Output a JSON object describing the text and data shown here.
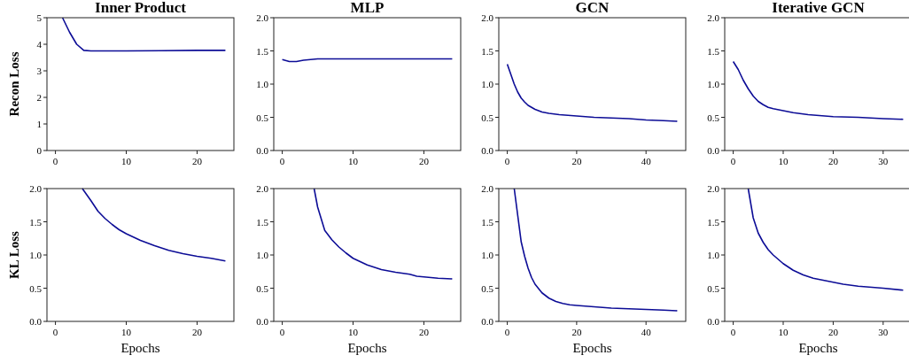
{
  "chart_data": [
    {
      "type": "line",
      "title": "Inner Product",
      "ylabel": "Recon Loss",
      "xlim": [
        -1.2,
        25.2
      ],
      "xticks": [
        0,
        10,
        20
      ],
      "ylim": [
        0,
        5
      ],
      "yticks": [
        0,
        1,
        2,
        3,
        4,
        5
      ],
      "grid": false,
      "series": [
        {
          "color": "#0c0c96",
          "x": [
            1,
            2,
            3,
            4,
            5,
            10,
            15,
            20,
            24
          ],
          "values": [
            5.0,
            4.45,
            4.0,
            3.77,
            3.75,
            3.75,
            3.76,
            3.77,
            3.77
          ]
        }
      ]
    },
    {
      "type": "line",
      "title": "MLP",
      "xlim": [
        -1.2,
        25.2
      ],
      "xticks": [
        0,
        10,
        20
      ],
      "ylim": [
        0,
        2
      ],
      "yticks": [
        {
          "value": 0,
          "label": "0.0"
        },
        0.5,
        {
          "value": 1,
          "label": "1.0"
        },
        1.5,
        {
          "value": 2,
          "label": "2.0"
        }
      ],
      "grid": false,
      "series": [
        {
          "color": "#0c0c96",
          "x": [
            0,
            1,
            2,
            3,
            4,
            5,
            10,
            24
          ],
          "values": [
            1.37,
            1.34,
            1.34,
            1.36,
            1.37,
            1.38,
            1.38,
            1.38
          ]
        }
      ]
    },
    {
      "type": "line",
      "title": "GCN",
      "xlim": [
        -2.45,
        51.45
      ],
      "xticks": [
        0,
        20,
        40
      ],
      "ylim": [
        0,
        2
      ],
      "yticks": [
        {
          "value": 0,
          "label": "0.0"
        },
        0.5,
        {
          "value": 1,
          "label": "1.0"
        },
        1.5,
        {
          "value": 2,
          "label": "2.0"
        }
      ],
      "grid": false,
      "series": [
        {
          "color": "#0c0c96",
          "x": [
            0,
            1,
            2,
            3,
            4,
            5,
            6,
            8,
            10,
            12,
            15,
            20,
            25,
            30,
            35,
            40,
            45,
            49
          ],
          "values": [
            1.3,
            1.15,
            1.0,
            0.88,
            0.79,
            0.73,
            0.68,
            0.62,
            0.58,
            0.56,
            0.54,
            0.52,
            0.5,
            0.49,
            0.48,
            0.46,
            0.45,
            0.44
          ]
        }
      ]
    },
    {
      "type": "line",
      "title": "Iterative GCN",
      "xlim": [
        -1.7,
        35.7
      ],
      "xticks": [
        0,
        10,
        20,
        30
      ],
      "ylim": [
        0,
        2
      ],
      "yticks": [
        {
          "value": 0,
          "label": "0.0"
        },
        0.5,
        {
          "value": 1,
          "label": "1.0"
        },
        1.5,
        {
          "value": 2,
          "label": "2.0"
        }
      ],
      "grid": false,
      "series": [
        {
          "color": "#0c0c96",
          "x": [
            0,
            1,
            2,
            3,
            4,
            5,
            6,
            7,
            8,
            10,
            12,
            15,
            20,
            25,
            30,
            34
          ],
          "values": [
            1.34,
            1.22,
            1.06,
            0.93,
            0.82,
            0.74,
            0.69,
            0.65,
            0.63,
            0.6,
            0.57,
            0.54,
            0.51,
            0.5,
            0.48,
            0.47
          ]
        }
      ]
    },
    {
      "type": "line",
      "xlabel": "Epochs",
      "ylabel": "KL Loss",
      "xlim": [
        -1.2,
        25.2
      ],
      "xticks": [
        0,
        10,
        20
      ],
      "ylim": [
        0,
        2
      ],
      "yticks": [
        {
          "value": 0,
          "label": "0.0"
        },
        0.5,
        {
          "value": 1,
          "label": "1.0"
        },
        1.5,
        {
          "value": 2,
          "label": "2.0"
        }
      ],
      "grid": false,
      "series": [
        {
          "color": "#0c0c96",
          "x": [
            3.8,
            5,
            6,
            7,
            8,
            9,
            10,
            12,
            14,
            16,
            18,
            20,
            22,
            24
          ],
          "values": [
            2.0,
            1.82,
            1.66,
            1.55,
            1.46,
            1.38,
            1.32,
            1.22,
            1.14,
            1.07,
            1.02,
            0.98,
            0.95,
            0.91
          ]
        }
      ]
    },
    {
      "type": "line",
      "xlabel": "Epochs",
      "xlim": [
        -1.2,
        25.2
      ],
      "xticks": [
        0,
        10,
        20
      ],
      "ylim": [
        0,
        2
      ],
      "yticks": [
        {
          "value": 0,
          "label": "0.0"
        },
        0.5,
        {
          "value": 1,
          "label": "1.0"
        },
        1.5,
        {
          "value": 2,
          "label": "2.0"
        }
      ],
      "grid": false,
      "series": [
        {
          "color": "#0c0c96",
          "x": [
            4.5,
            5,
            6,
            7,
            8,
            9,
            10,
            12,
            14,
            16,
            18,
            19,
            20,
            22,
            24
          ],
          "values": [
            2.0,
            1.72,
            1.37,
            1.23,
            1.12,
            1.03,
            0.95,
            0.85,
            0.78,
            0.74,
            0.71,
            0.68,
            0.67,
            0.65,
            0.64
          ]
        }
      ]
    },
    {
      "type": "line",
      "xlabel": "Epochs",
      "xlim": [
        -2.45,
        51.45
      ],
      "xticks": [
        0,
        20,
        40
      ],
      "ylim": [
        0,
        2
      ],
      "yticks": [
        {
          "value": 0,
          "label": "0.0"
        },
        0.5,
        {
          "value": 1,
          "label": "1.0"
        },
        1.5,
        {
          "value": 2,
          "label": "2.0"
        }
      ],
      "grid": false,
      "series": [
        {
          "color": "#0c0c96",
          "x": [
            2,
            3,
            4,
            5,
            6,
            7,
            8,
            10,
            12,
            14,
            16,
            18,
            20,
            25,
            30,
            35,
            40,
            45,
            49
          ],
          "values": [
            2.0,
            1.6,
            1.2,
            0.98,
            0.8,
            0.66,
            0.56,
            0.43,
            0.35,
            0.3,
            0.27,
            0.25,
            0.24,
            0.22,
            0.2,
            0.19,
            0.18,
            0.17,
            0.16
          ]
        }
      ]
    },
    {
      "type": "line",
      "xlabel": "Epochs",
      "xlim": [
        -1.7,
        35.7
      ],
      "xticks": [
        0,
        10,
        20,
        30
      ],
      "ylim": [
        0,
        2
      ],
      "yticks": [
        {
          "value": 0,
          "label": "0.0"
        },
        0.5,
        {
          "value": 1,
          "label": "1.0"
        },
        1.5,
        {
          "value": 2,
          "label": "2.0"
        }
      ],
      "grid": false,
      "series": [
        {
          "color": "#0c0c96",
          "x": [
            3,
            4,
            5,
            6,
            7,
            8,
            10,
            12,
            14,
            16,
            18,
            20,
            22,
            25,
            30,
            34
          ],
          "values": [
            2.0,
            1.56,
            1.33,
            1.19,
            1.08,
            1.0,
            0.87,
            0.77,
            0.7,
            0.65,
            0.62,
            0.59,
            0.56,
            0.53,
            0.5,
            0.47
          ]
        }
      ]
    }
  ]
}
